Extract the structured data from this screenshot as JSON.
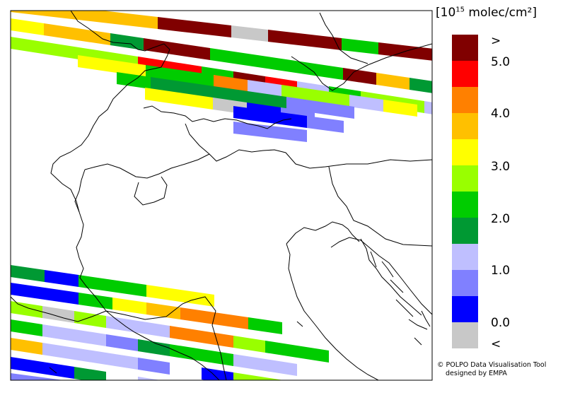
{
  "legend": {
    "title_prefix": "[10",
    "title_exponent": "15",
    "title_suffix": " molec/cm²]",
    "colors": [
      "#800000",
      "#ff0000",
      "#ff8000",
      "#ffc000",
      "#ffff00",
      "#99ff00",
      "#00cc00",
      "#009933",
      "#bfbfff",
      "#8080ff",
      "#0000ff",
      "#c8c8c8"
    ],
    "labels": [
      ">",
      "5.0",
      "4.0",
      "3.0",
      "2.0",
      "1.0",
      "0.0",
      "<"
    ]
  },
  "credit": {
    "line1": "© POLPO Data Visualisation Tool",
    "line2": "designed by EMPA"
  }
}
